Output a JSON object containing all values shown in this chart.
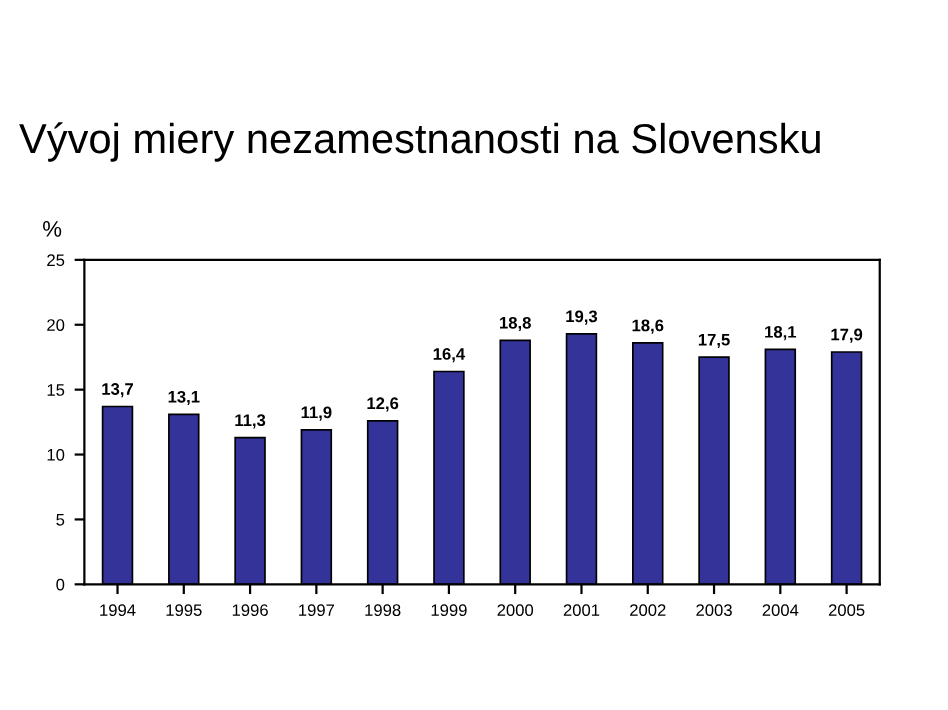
{
  "chart_data": {
    "type": "bar",
    "title": "Vývoj miery nezamestnanosti na Slovensku",
    "ylabel": "%",
    "categories": [
      "1994",
      "1995",
      "1996",
      "1997",
      "1998",
      "1999",
      "2000",
      "2001",
      "2002",
      "2003",
      "2004",
      "2005"
    ],
    "values": [
      13.7,
      13.1,
      11.3,
      11.9,
      12.6,
      16.4,
      18.8,
      19.3,
      18.6,
      17.5,
      18.1,
      17.9
    ],
    "value_labels": [
      "13,7",
      "13,1",
      "11,3",
      "11,9",
      "12,6",
      "16,4",
      "18,8",
      "19,3",
      "18,6",
      "17,5",
      "18,1",
      "17,9"
    ],
    "color": "#333399",
    "ylim": [
      0,
      25
    ],
    "yticks": [
      0,
      5,
      10,
      15,
      20,
      25
    ],
    "grid": false,
    "legend": false
  }
}
